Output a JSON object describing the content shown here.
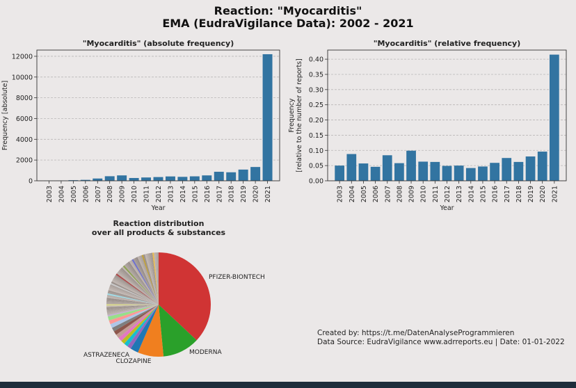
{
  "title_line1": "Reaction: \"Myocarditis\"",
  "title_line2": "EMA (EudraVigilance Data): 2002 - 2021",
  "credit_line1": "Created by: https://t.me/DatenAnalyseProgrammieren",
  "credit_line2": "Data Source: EudraVigilance www.adrreports.eu | Date: 01-01-2022",
  "colors": {
    "bar": "#3274a1",
    "background": "#ebe8e8"
  },
  "chart_data": [
    {
      "type": "bar",
      "title": "\"Myocarditis\" (absolute frequency)",
      "xlabel": "Year",
      "ylabel": "Frequency [absolute]",
      "categories": [
        "2003",
        "2004",
        "2005",
        "2006",
        "2007",
        "2008",
        "2009",
        "2010",
        "2011",
        "2012",
        "2013",
        "2014",
        "2015",
        "2016",
        "2017",
        "2018",
        "2019",
        "2020",
        "2021"
      ],
      "values": [
        10,
        20,
        60,
        90,
        220,
        440,
        520,
        270,
        320,
        360,
        420,
        380,
        430,
        520,
        870,
        820,
        1080,
        1330,
        12200
      ],
      "ylim": [
        0,
        12600
      ],
      "yticks": [
        0,
        2000,
        4000,
        6000,
        8000,
        10000,
        12000
      ],
      "grid": true
    },
    {
      "type": "bar",
      "title": "\"Myocarditis\" (relative frequency)",
      "xlabel": "Year",
      "ylabel": "Frequency\n[relative to the number of reports]",
      "categories": [
        "2003",
        "2004",
        "2005",
        "2006",
        "2007",
        "2008",
        "2009",
        "2010",
        "2011",
        "2012",
        "2013",
        "2014",
        "2015",
        "2016",
        "2017",
        "2018",
        "2019",
        "2020",
        "2021"
      ],
      "values": [
        0.05,
        0.088,
        0.057,
        0.046,
        0.084,
        0.058,
        0.099,
        0.063,
        0.062,
        0.049,
        0.05,
        0.042,
        0.047,
        0.059,
        0.075,
        0.062,
        0.08,
        0.096,
        0.415
      ],
      "ylim": [
        0,
        0.43
      ],
      "yticks": [
        "0.00",
        "0.05",
        "0.10",
        "0.15",
        "0.20",
        "0.25",
        "0.30",
        "0.35",
        "0.40"
      ],
      "grid": true
    },
    {
      "type": "pie",
      "title": "Reaction distribution\nover all products & substances",
      "labels": [
        "PFIZER-BIONTECH",
        "MODERNA",
        "CLOZAPINE",
        "ASTRAZENECA"
      ],
      "values": [
        37,
        11.5,
        8,
        2.5
      ],
      "colors": [
        "#d03434",
        "#2aa02a",
        "#f07f1f",
        "#1f77b4"
      ],
      "other_share": 41
    }
  ]
}
